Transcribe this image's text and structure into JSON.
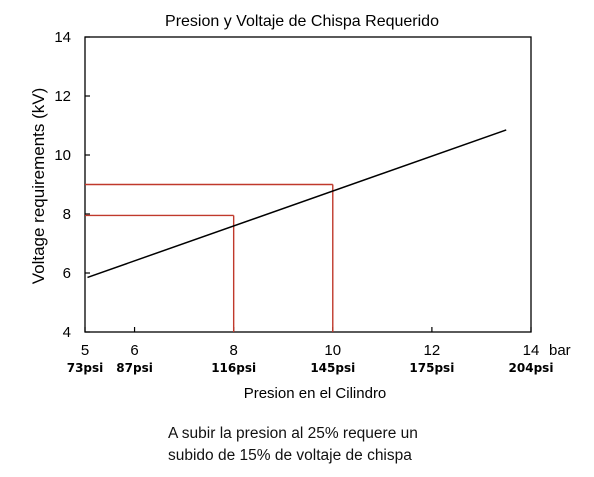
{
  "chart_data": {
    "type": "line",
    "title": "Presion y Voltaje de Chispa Requerido",
    "xlabel": "Presion en el Cilindro",
    "ylabel": "Voltage requirements (kV)",
    "x_unit": "bar",
    "xlim": [
      5,
      14
    ],
    "ylim": [
      4,
      14
    ],
    "x_ticks": [
      5,
      6,
      8,
      10,
      12,
      14
    ],
    "y_ticks": [
      4,
      6,
      8,
      10,
      12,
      14
    ],
    "x_tick_labels": [
      "5",
      "6",
      "8",
      "10",
      "12",
      "14"
    ],
    "y_tick_labels": [
      "4",
      "6",
      "8",
      "10",
      "12",
      "14"
    ],
    "psi_labels": [
      "73psi",
      "87psi",
      "116psi",
      "145psi",
      "175psi",
      "204psi"
    ],
    "grid": false,
    "series": [
      {
        "x": [
          5.05,
          13.5
        ],
        "y": [
          5.85,
          10.85
        ],
        "color": "#000000"
      }
    ],
    "reference_points": [
      {
        "x": 8,
        "y": 7.95,
        "color": "#c0392b"
      },
      {
        "x": 10,
        "y": 9.0,
        "color": "#c0392b"
      }
    ]
  },
  "annotation": {
    "line1": "A subir la presion al 25% requere un",
    "line2": "subido de 15% de voltaje de chispa"
  }
}
